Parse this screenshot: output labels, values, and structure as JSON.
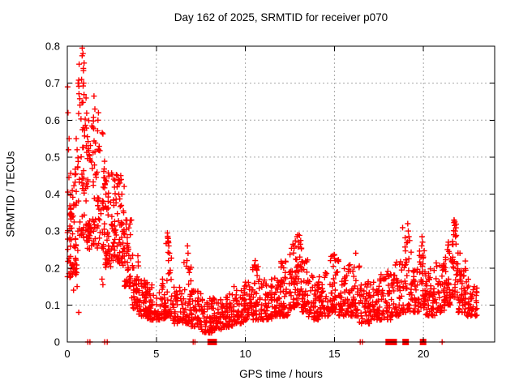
{
  "page": {
    "background": "#ffffff"
  },
  "chart_data": {
    "type": "scatter",
    "title": "Day 162 of 2025, SRMTID for receiver p070",
    "xlabel": "GPS time / hours",
    "ylabel": "SRMTID / TECUs",
    "xlim": [
      0,
      24
    ],
    "ylim": [
      0,
      0.8
    ],
    "xticks": [
      0,
      5,
      10,
      15,
      20
    ],
    "yticks": [
      0,
      0.1,
      0.2,
      0.3,
      0.4,
      0.5,
      0.6,
      0.7,
      0.8
    ],
    "grid": {
      "show": true,
      "color": "#a6a6a6",
      "style": "dotted"
    },
    "legend": "none",
    "marker": {
      "shape": "plus",
      "color": "#ff0000",
      "size": 7,
      "stroke_width": 1.4
    },
    "axis_color": "#000000",
    "series_name": "SRMTID",
    "seed": 20250162,
    "band_fields": [
      "x_start",
      "x_end",
      "count",
      "y_min",
      "y_max",
      "bias_exponent"
    ],
    "density_bands": [
      [
        0.0,
        0.3,
        40,
        0.17,
        0.46,
        1.3
      ],
      [
        0.3,
        0.6,
        38,
        0.18,
        0.5,
        1.4
      ],
      [
        0.6,
        0.95,
        45,
        0.28,
        0.78,
        1.1
      ],
      [
        0.95,
        1.25,
        42,
        0.25,
        0.62,
        1.3
      ],
      [
        1.25,
        1.65,
        40,
        0.26,
        0.64,
        1.5
      ],
      [
        1.65,
        2.1,
        45,
        0.25,
        0.58,
        1.4
      ],
      [
        2.1,
        2.45,
        40,
        0.2,
        0.46,
        1.4
      ],
      [
        2.45,
        2.8,
        40,
        0.22,
        0.46,
        1.3
      ],
      [
        2.8,
        3.2,
        42,
        0.2,
        0.44,
        1.4
      ],
      [
        3.2,
        3.6,
        40,
        0.15,
        0.34,
        1.4
      ],
      [
        3.6,
        4.0,
        40,
        0.09,
        0.24,
        1.6
      ],
      [
        4.0,
        4.5,
        45,
        0.07,
        0.17,
        1.6
      ],
      [
        4.5,
        5.0,
        45,
        0.06,
        0.16,
        1.6
      ],
      [
        5.0,
        5.55,
        45,
        0.06,
        0.17,
        1.7
      ],
      [
        5.55,
        5.9,
        30,
        0.07,
        0.295,
        2.2
      ],
      [
        5.9,
        6.5,
        48,
        0.05,
        0.16,
        1.7
      ],
      [
        6.5,
        6.95,
        40,
        0.05,
        0.22,
        1.9
      ],
      [
        6.95,
        7.5,
        45,
        0.04,
        0.14,
        1.6
      ],
      [
        7.5,
        8.1,
        48,
        0.025,
        0.12,
        1.6
      ],
      [
        8.1,
        8.7,
        48,
        0.03,
        0.12,
        1.6
      ],
      [
        8.7,
        9.3,
        48,
        0.04,
        0.13,
        1.6
      ],
      [
        9.3,
        9.9,
        48,
        0.05,
        0.15,
        1.6
      ],
      [
        9.9,
        10.4,
        45,
        0.06,
        0.17,
        1.7
      ],
      [
        10.4,
        10.9,
        45,
        0.06,
        0.21,
        1.8
      ],
      [
        10.9,
        11.5,
        48,
        0.06,
        0.17,
        1.7
      ],
      [
        11.5,
        12.0,
        45,
        0.07,
        0.18,
        1.7
      ],
      [
        12.0,
        12.45,
        42,
        0.07,
        0.22,
        1.8
      ],
      [
        12.45,
        12.8,
        35,
        0.09,
        0.27,
        1.8
      ],
      [
        12.8,
        13.15,
        35,
        0.1,
        0.29,
        1.6
      ],
      [
        13.15,
        13.5,
        35,
        0.08,
        0.25,
        1.9
      ],
      [
        13.5,
        14.1,
        48,
        0.06,
        0.18,
        1.7
      ],
      [
        14.1,
        14.7,
        48,
        0.07,
        0.19,
        1.7
      ],
      [
        14.7,
        15.25,
        45,
        0.08,
        0.24,
        1.8
      ],
      [
        15.25,
        15.8,
        45,
        0.07,
        0.2,
        1.7
      ],
      [
        15.8,
        16.4,
        48,
        0.07,
        0.22,
        1.8
      ],
      [
        16.4,
        17.0,
        48,
        0.05,
        0.17,
        1.7
      ],
      [
        17.0,
        17.6,
        48,
        0.06,
        0.18,
        1.7
      ],
      [
        17.6,
        18.2,
        48,
        0.06,
        0.2,
        1.7
      ],
      [
        18.2,
        18.8,
        48,
        0.07,
        0.22,
        1.7
      ],
      [
        18.8,
        19.35,
        42,
        0.08,
        0.32,
        1.9
      ],
      [
        19.35,
        19.75,
        35,
        0.08,
        0.2,
        1.7
      ],
      [
        19.75,
        20.1,
        35,
        0.09,
        0.29,
        1.8
      ],
      [
        20.1,
        20.7,
        48,
        0.07,
        0.2,
        1.7
      ],
      [
        20.7,
        21.2,
        45,
        0.08,
        0.22,
        1.7
      ],
      [
        21.2,
        21.55,
        35,
        0.1,
        0.27,
        1.7
      ],
      [
        21.55,
        21.95,
        40,
        0.12,
        0.33,
        1.5
      ],
      [
        21.95,
        22.4,
        42,
        0.08,
        0.22,
        1.7
      ],
      [
        22.4,
        23.0,
        48,
        0.07,
        0.17,
        1.7
      ]
    ],
    "outlier_points": [
      [
        0.02,
        0.69
      ],
      [
        0.04,
        0.62
      ],
      [
        0.1,
        0.55
      ],
      [
        0.07,
        0.52
      ],
      [
        0.35,
        0.14
      ],
      [
        0.55,
        0.15
      ],
      [
        0.64,
        0.08
      ],
      [
        0.5,
        0.55
      ],
      [
        0.55,
        0.52
      ],
      [
        0.84,
        0.795
      ],
      [
        0.88,
        0.78
      ],
      [
        0.9,
        0.74
      ],
      [
        0.8,
        0.71
      ],
      [
        0.92,
        0.7
      ],
      [
        1.05,
        0.66
      ],
      [
        1.5,
        0.665
      ],
      [
        1.55,
        0.63
      ],
      [
        1.75,
        0.62
      ],
      [
        1.72,
        0.6
      ],
      [
        1.95,
        0.17
      ],
      [
        2.0,
        0.155
      ],
      [
        2.95,
        0.43
      ],
      [
        3.0,
        0.45
      ],
      [
        5.62,
        0.295
      ],
      [
        5.66,
        0.28
      ],
      [
        5.7,
        0.26
      ],
      [
        5.74,
        0.24
      ],
      [
        5.68,
        0.22
      ],
      [
        6.75,
        0.26
      ],
      [
        6.78,
        0.24
      ],
      [
        6.72,
        0.22
      ],
      [
        10.55,
        0.22
      ],
      [
        10.6,
        0.2
      ],
      [
        12.9,
        0.285
      ],
      [
        12.95,
        0.29
      ],
      [
        13.0,
        0.27
      ],
      [
        15.0,
        0.235
      ],
      [
        15.05,
        0.22
      ],
      [
        16.2,
        0.24
      ],
      [
        19.1,
        0.27
      ],
      [
        19.12,
        0.32
      ],
      [
        19.15,
        0.3
      ],
      [
        19.18,
        0.285
      ],
      [
        19.9,
        0.26
      ],
      [
        19.92,
        0.285
      ],
      [
        19.95,
        0.27
      ],
      [
        21.35,
        0.25
      ],
      [
        21.4,
        0.27
      ],
      [
        21.7,
        0.29
      ],
      [
        21.72,
        0.33
      ],
      [
        21.75,
        0.315
      ],
      [
        21.78,
        0.3
      ],
      [
        21.8,
        0.285
      ],
      [
        22.05,
        0.24
      ]
    ],
    "zero_markers": [
      {
        "x": 1.15,
        "style": "plus"
      },
      {
        "x": 1.27,
        "style": "plus"
      },
      {
        "x": 2.1,
        "style": "plus"
      },
      {
        "x": 2.24,
        "style": "plus"
      },
      {
        "x": 7.07,
        "style": "plus"
      },
      {
        "x": 7.17,
        "style": "plus"
      },
      {
        "x": 8.05,
        "style": "square"
      },
      {
        "x": 8.22,
        "style": "square"
      },
      {
        "x": 16.45,
        "style": "plus"
      },
      {
        "x": 16.57,
        "style": "plus"
      },
      {
        "x": 18.05,
        "style": "square"
      },
      {
        "x": 18.33,
        "style": "square"
      },
      {
        "x": 19.0,
        "style": "square"
      },
      {
        "x": 19.98,
        "style": "square"
      },
      {
        "x": 21.05,
        "style": "plus"
      }
    ]
  }
}
